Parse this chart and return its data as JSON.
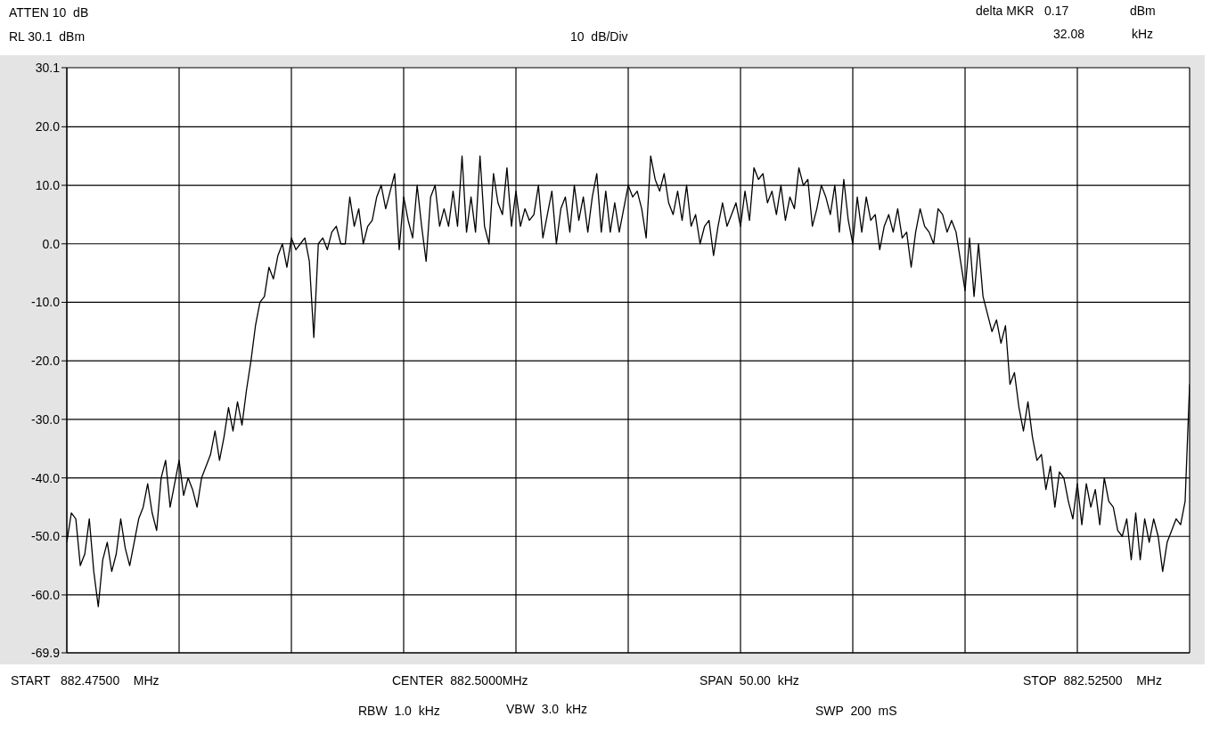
{
  "chart_data": {
    "type": "line",
    "categories": [
      null,
      null,
      null,
      null,
      null,
      null,
      null,
      null,
      null,
      null,
      null,
      null,
      null,
      null,
      null,
      null,
      null,
      null,
      null,
      null,
      null,
      null,
      null,
      null,
      null,
      null,
      null,
      null,
      null,
      null,
      null,
      null,
      null,
      null,
      null,
      null,
      null,
      null,
      null,
      null,
      null,
      null,
      null,
      null,
      null,
      null,
      null,
      null,
      null,
      null,
      null,
      null,
      null,
      null,
      null,
      null,
      null,
      null,
      null,
      null,
      null,
      null,
      null,
      null,
      null,
      null,
      null,
      null,
      null,
      null,
      null,
      null,
      null,
      null,
      null,
      null,
      null,
      null,
      null,
      null,
      null,
      null,
      null,
      null,
      null,
      null,
      null,
      null,
      null,
      null,
      null,
      null,
      null,
      null,
      null,
      null,
      null,
      null,
      null,
      null,
      null,
      null,
      null,
      null,
      null,
      null,
      null,
      null,
      null,
      null,
      null,
      null,
      null,
      null,
      null,
      null,
      null,
      null,
      null,
      null,
      null,
      null,
      null,
      null,
      null,
      null,
      null,
      null,
      null,
      null,
      null,
      null,
      null,
      null,
      null,
      null,
      null,
      null,
      null,
      null,
      null,
      null,
      null,
      null,
      null,
      null,
      null,
      null,
      null,
      null,
      null,
      null,
      null,
      null,
      null,
      null,
      null,
      null,
      null,
      null,
      null,
      null,
      null,
      null,
      null,
      null,
      null,
      null,
      null,
      null,
      null,
      null,
      null,
      null,
      null,
      null,
      null,
      null,
      null,
      null,
      null,
      null,
      null,
      null,
      null,
      null,
      null,
      null,
      null,
      null,
      null,
      null,
      null,
      null,
      null,
      null,
      null,
      null,
      null,
      null,
      null,
      null,
      null,
      null,
      null,
      null,
      null,
      null,
      null,
      null,
      null,
      null,
      null,
      null,
      null,
      null,
      null,
      null,
      null,
      null,
      null,
      null,
      null,
      null,
      null,
      null,
      null,
      null,
      null,
      null,
      null,
      null,
      null,
      null,
      null,
      null,
      null,
      null,
      null,
      null,
      null,
      null,
      null,
      null,
      null,
      null,
      null,
      null,
      null,
      null,
      null
    ],
    "ylim": [
      -69.9,
      30.1
    ],
    "yticks": [
      {
        "value": -69.9,
        "label": "-69.9"
      },
      {
        "value": -60,
        "label": "-60.0"
      },
      {
        "value": -50,
        "label": "-50.0"
      },
      {
        "value": -40,
        "label": "-40.0"
      },
      {
        "value": -30,
        "label": "-30.0"
      },
      {
        "value": -20,
        "label": "-20.0"
      },
      {
        "value": -10,
        "label": "-10.0"
      },
      {
        "value": 0,
        "label": "0.0"
      },
      {
        "value": 10,
        "label": "10.0"
      },
      {
        "value": 20,
        "label": "20.0"
      },
      {
        "value": 30.1,
        "label": "30.1"
      }
    ],
    "grid": true,
    "tick_labels": "y",
    "marker": "none",
    "line_style": "solid",
    "annotations": [
      "ATTEN 10  dB",
      "RL 30.1  dBm",
      "10  dB/Div",
      "delta MKR   0.17",
      "dBm",
      "32.08",
      "kHz",
      "START   882.47500    MHz",
      "CENTER  882.5000MHz",
      "SPAN  50.00  kHz",
      "STOP  882.52500    MHz",
      "RBW  1.0  kHz",
      "VBW  3.0  kHz",
      "SWP  200  mS"
    ],
    "series": [
      {
        "color": "#000000",
        "values": [
          -51,
          -46,
          -47,
          -55,
          -53,
          -47,
          -56,
          -62,
          -54,
          -51,
          -56,
          -53,
          -47,
          -52,
          -55,
          -51,
          -47,
          -45,
          -41,
          -46,
          -49,
          -40,
          -37,
          -45,
          -41,
          -37,
          -43,
          -40,
          -42,
          -45,
          -40,
          -38,
          -36,
          -32,
          -37,
          -33,
          -28,
          -32,
          -27,
          -31,
          -25,
          -20,
          -14,
          -10,
          -9,
          -4,
          -6,
          -2,
          0,
          -4,
          1,
          -1,
          0,
          1,
          -3,
          -16,
          0,
          1,
          -1,
          2,
          3,
          0,
          0,
          8,
          3,
          6,
          0,
          3,
          4,
          8,
          10,
          6,
          9,
          12,
          -1,
          8,
          4,
          1,
          10,
          3,
          -3,
          8,
          10,
          3,
          6,
          3,
          9,
          3,
          15,
          2,
          8,
          2,
          15,
          3,
          0,
          12,
          7,
          5,
          13,
          3,
          9,
          3,
          6,
          4,
          5,
          10,
          1,
          5,
          9,
          0,
          6,
          8,
          2,
          10,
          4,
          8,
          2,
          8,
          12,
          2,
          9,
          2,
          7,
          2,
          6,
          10,
          8,
          9,
          6,
          1,
          15,
          11,
          9,
          12,
          7,
          5,
          9,
          4,
          10,
          3,
          5,
          0,
          3,
          4,
          -2,
          3,
          7,
          3,
          5,
          7,
          3,
          9,
          4,
          13,
          11,
          12,
          7,
          9,
          5,
          10,
          4,
          8,
          6,
          13,
          10,
          11,
          3,
          6,
          10,
          8,
          5,
          10,
          2,
          11,
          4,
          0,
          8,
          2,
          8,
          4,
          5,
          -1,
          3,
          5,
          2,
          6,
          1,
          2,
          -4,
          2,
          6,
          3,
          2,
          0,
          6,
          5,
          2,
          4,
          2,
          -3,
          -8,
          1,
          -9,
          0,
          -9,
          -12,
          -15,
          -13,
          -17,
          -14,
          -24,
          -22,
          -28,
          -32,
          -27,
          -33,
          -37,
          -36,
          -42,
          -38,
          -45,
          -39,
          -40,
          -44,
          -47,
          -41,
          -48,
          -41,
          -45,
          -42,
          -48,
          -40,
          -44,
          -45,
          -49,
          -50,
          -47,
          -54,
          -46,
          -54,
          -47,
          -51,
          -47,
          -50,
          -56,
          -51,
          -49,
          -47,
          -48,
          -44,
          -24
        ]
      }
    ]
  }
}
